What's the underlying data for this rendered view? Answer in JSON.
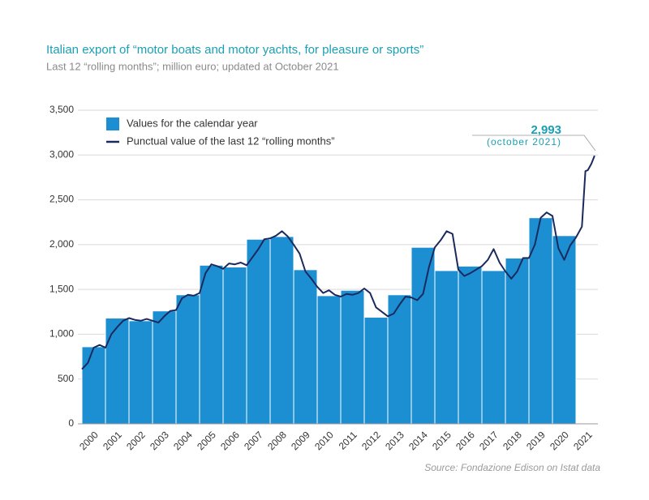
{
  "chart_data": {
    "type": "bar",
    "title": "Italian export of “motor boats and motor yachts, for pleasure or sports”",
    "subtitle": "Last 12 “rolling months”; million euro; updated at October 2021",
    "source": "Source: Fondazione Edison on Istat data",
    "annotations": [
      "2,993",
      "(october 2021)"
    ],
    "categories": [
      "2000",
      "2001",
      "2002",
      "2003",
      "2004",
      "2005",
      "2006",
      "2007",
      "2008",
      "2009",
      "2010",
      "2011",
      "2012",
      "2013",
      "2014",
      "2015",
      "2016",
      "2017",
      "2018",
      "2019",
      "2020",
      "2021"
    ],
    "ylim": [
      0,
      3500
    ],
    "yticks": [
      0,
      500,
      {
        "value": 1000,
        "label": "1,000"
      },
      {
        "value": 1500,
        "label": "1,500"
      },
      {
        "value": 2000,
        "label": "2,000"
      },
      {
        "value": 2500,
        "label": "2,500"
      },
      {
        "value": 3000,
        "label": "3,000"
      },
      {
        "value": 3500,
        "label": "3,500"
      }
    ],
    "xlim": [
      2000,
      2022
    ],
    "grid": true,
    "series": [
      {
        "name": "Values for the calendar year",
        "type": "bar",
        "color": "#1b8fd2",
        "values": [
          860,
          1180,
          1150,
          1260,
          1440,
          1770,
          1750,
          2060,
          2090,
          1720,
          1430,
          1490,
          1190,
          1440,
          1970,
          1710,
          1760,
          1710,
          1850,
          2300,
          2100,
          null
        ]
      },
      {
        "name": "Punctual value of the last 12 “rolling months”",
        "type": "line",
        "color": "#1b2a5e",
        "x": [
          2000,
          2000.25,
          2000.5,
          2000.75,
          2001,
          2001.25,
          2001.5,
          2001.75,
          2002,
          2002.25,
          2002.5,
          2002.75,
          2003,
          2003.25,
          2003.5,
          2003.75,
          2004,
          2004.25,
          2004.5,
          2004.75,
          2005,
          2005.25,
          2005.5,
          2005.75,
          2006,
          2006.25,
          2006.5,
          2006.75,
          2007,
          2007.25,
          2007.5,
          2007.75,
          2008,
          2008.25,
          2008.5,
          2008.75,
          2009,
          2009.25,
          2009.5,
          2009.75,
          2010,
          2010.25,
          2010.5,
          2010.75,
          2011,
          2011.25,
          2011.5,
          2011.75,
          2012,
          2012.25,
          2012.5,
          2012.75,
          2013,
          2013.25,
          2013.5,
          2013.75,
          2014,
          2014.25,
          2014.5,
          2014.75,
          2015,
          2015.25,
          2015.5,
          2015.75,
          2016,
          2016.25,
          2016.5,
          2016.75,
          2017,
          2017.25,
          2017.5,
          2017.75,
          2018,
          2018.25,
          2018.5,
          2018.75,
          2019,
          2019.25,
          2019.5,
          2019.75,
          2020,
          2020.25,
          2020.5,
          2020.75,
          2021,
          2021.25,
          2021.4,
          2021.5,
          2021.65,
          2021.79
        ],
        "values": [
          610,
          680,
          850,
          880,
          850,
          1000,
          1080,
          1150,
          1180,
          1160,
          1150,
          1170,
          1150,
          1130,
          1200,
          1260,
          1270,
          1400,
          1440,
          1430,
          1460,
          1680,
          1780,
          1760,
          1730,
          1790,
          1780,
          1800,
          1770,
          1860,
          1950,
          2060,
          2070,
          2100,
          2150,
          2090,
          2000,
          1900,
          1700,
          1620,
          1530,
          1460,
          1490,
          1440,
          1420,
          1450,
          1440,
          1460,
          1510,
          1460,
          1300,
          1250,
          1200,
          1230,
          1330,
          1420,
          1410,
          1380,
          1450,
          1750,
          1970,
          2050,
          2150,
          2120,
          1720,
          1650,
          1680,
          1720,
          1760,
          1830,
          1950,
          1800,
          1700,
          1620,
          1700,
          1850,
          1850,
          2000,
          2300,
          2360,
          2320,
          1960,
          1830,
          1990,
          2080,
          2200,
          2820,
          2830,
          2900,
          2993
        ]
      }
    ]
  }
}
